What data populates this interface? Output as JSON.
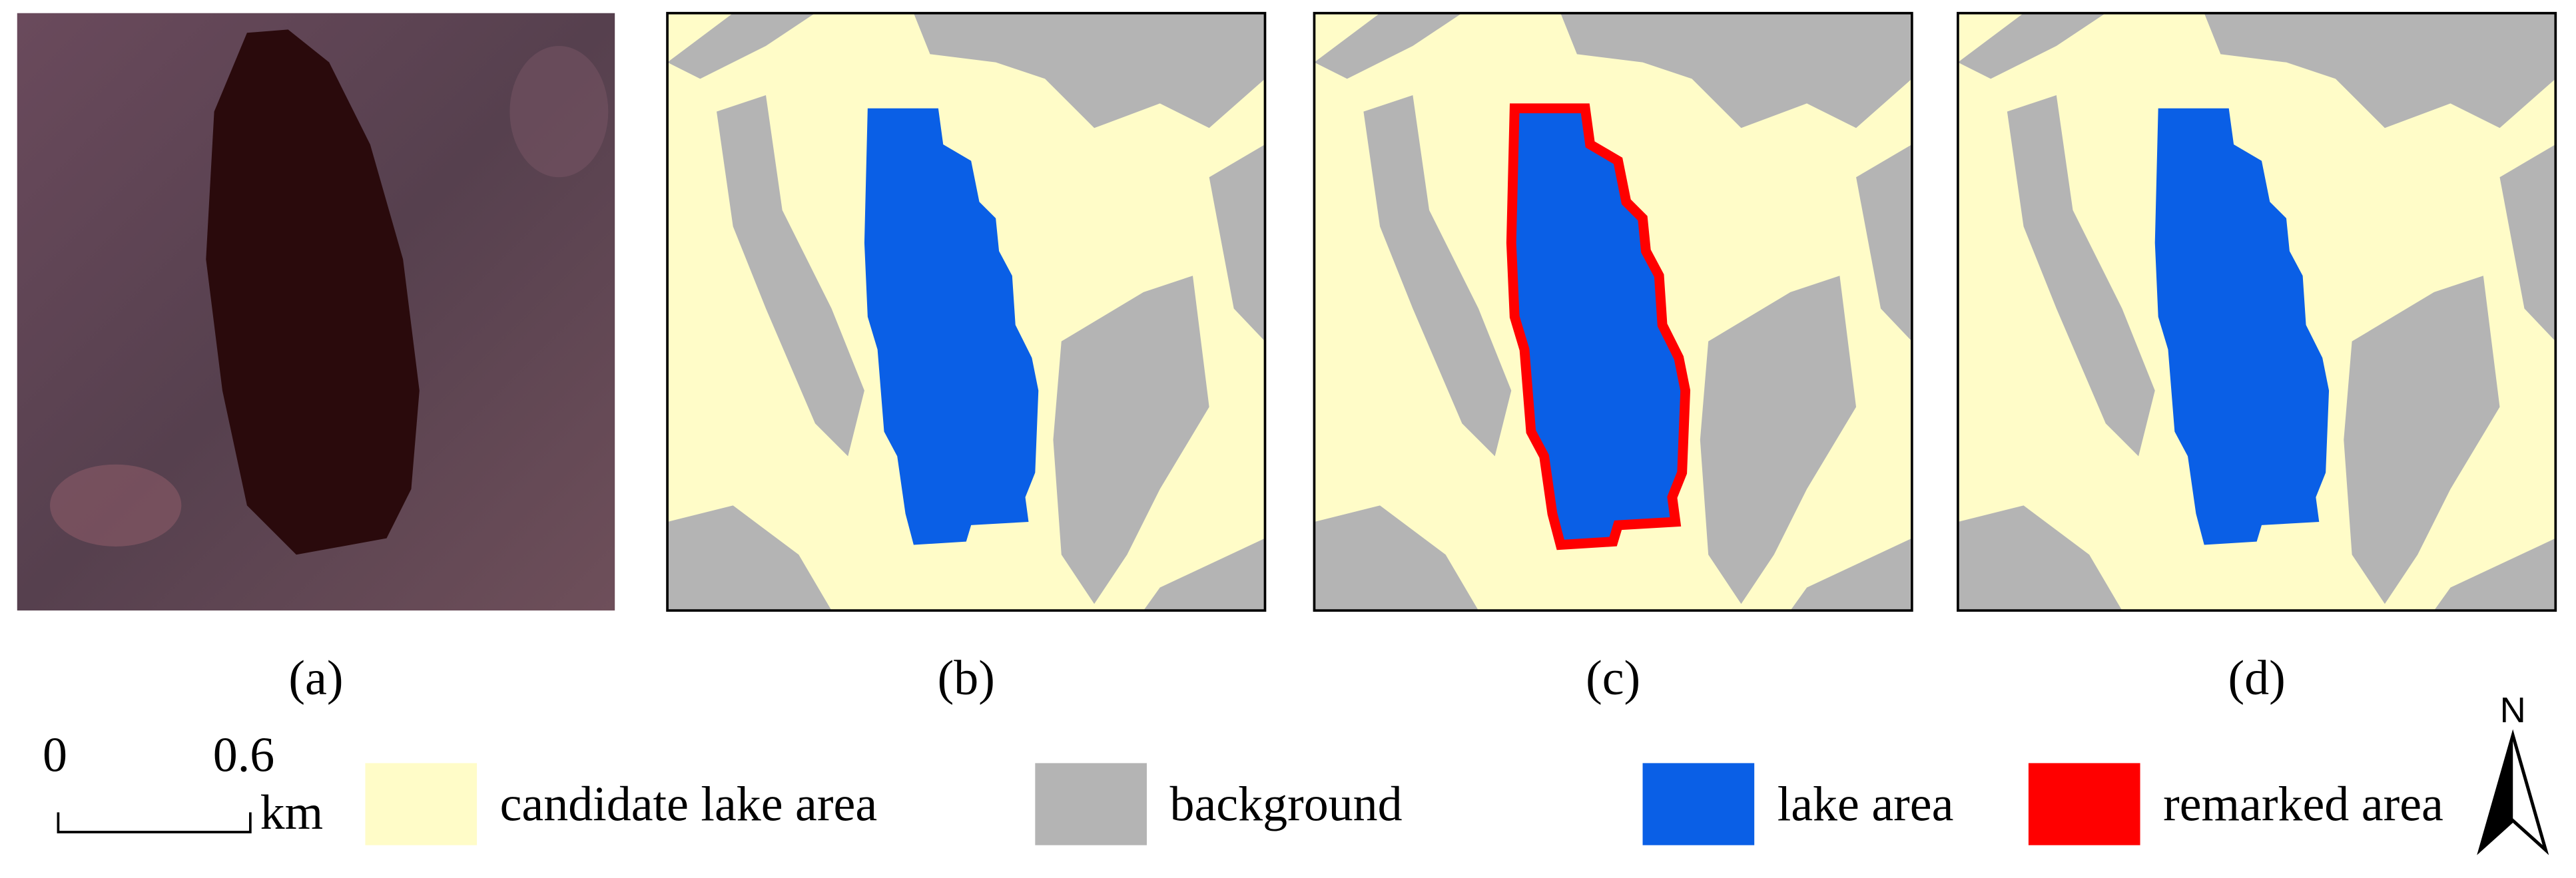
{
  "panels": [
    {
      "label": "(a)"
    },
    {
      "label": "(b)"
    },
    {
      "label": "(c)"
    },
    {
      "label": "(d)"
    }
  ],
  "scale_bar": {
    "start": "0",
    "end": "0.6",
    "unit": "km"
  },
  "legend": [
    {
      "label": "candidate lake area",
      "color": "#fffcc8"
    },
    {
      "label": "background",
      "color": "#b4b4b4"
    },
    {
      "label": "lake area",
      "color": "#0a5fe6"
    },
    {
      "label": "remarked area",
      "color": "#ff0000"
    }
  ],
  "north_arrow": {
    "label": "N"
  }
}
